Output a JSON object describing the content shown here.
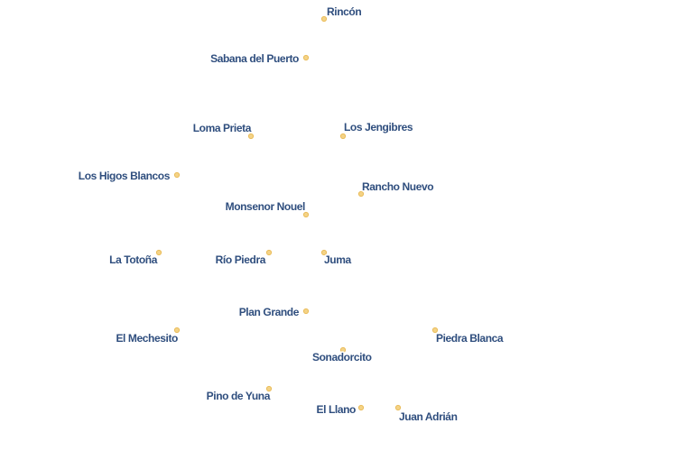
{
  "map": {
    "dot_color": "#f3cf7a",
    "label_color": "#2f4e7e",
    "places": [
      {
        "name": "Rincón"
      },
      {
        "name": "Sabana del Puerto"
      },
      {
        "name": "Loma Prieta"
      },
      {
        "name": "Los Jengibres"
      },
      {
        "name": "Los Higos Blancos"
      },
      {
        "name": "Rancho Nuevo"
      },
      {
        "name": "Monsenor Nouel"
      },
      {
        "name": "La Totoña"
      },
      {
        "name": "Río Piedra"
      },
      {
        "name": "Juma"
      },
      {
        "name": "Plan Grande"
      },
      {
        "name": "El Mechesito"
      },
      {
        "name": "Piedra Blanca"
      },
      {
        "name": "Sonadorcito"
      },
      {
        "name": "Pino de Yuna"
      },
      {
        "name": "El Llano"
      },
      {
        "name": "Juan Adrián"
      }
    ]
  }
}
